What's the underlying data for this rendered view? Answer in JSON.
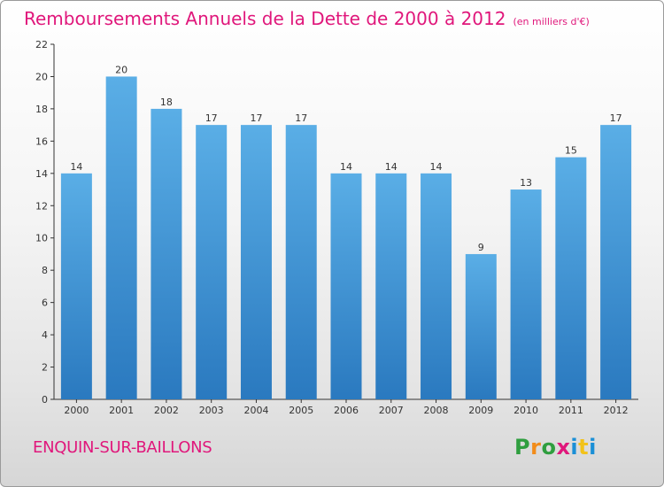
{
  "chart_data": {
    "type": "bar",
    "title": "Remboursements Annuels de la Dette de 2000 à 2012",
    "subtitle": "(en milliers d'€)",
    "categories": [
      "2000",
      "2001",
      "2002",
      "2003",
      "2004",
      "2005",
      "2006",
      "2007",
      "2008",
      "2009",
      "2010",
      "2011",
      "2012"
    ],
    "values": [
      14,
      20,
      18,
      17,
      17,
      17,
      14,
      14,
      14,
      9,
      13,
      15,
      17
    ],
    "ylim": [
      0,
      22
    ],
    "yticks": [
      "0",
      "2",
      "4",
      "6",
      "8",
      "10",
      "12",
      "14",
      "16",
      "18",
      "20",
      "22"
    ],
    "grid": false,
    "xlabel": "",
    "ylabel": ""
  },
  "footer": {
    "commune": "ENQUIN-SUR-BAILLONS"
  },
  "logo": {
    "letters": [
      "P",
      "r",
      "o",
      "x",
      "i",
      "t",
      "i"
    ],
    "colors": [
      "#2f9e3f",
      "#f28c1a",
      "#2f9e3f",
      "#e0177b",
      "#1a8fd6",
      "#f2c21a",
      "#1a8fd6"
    ]
  },
  "colors": {
    "bar_top": "#5aaee6",
    "bar_bottom": "#2a79bf",
    "title": "#e0177b",
    "axis": "#333333"
  }
}
